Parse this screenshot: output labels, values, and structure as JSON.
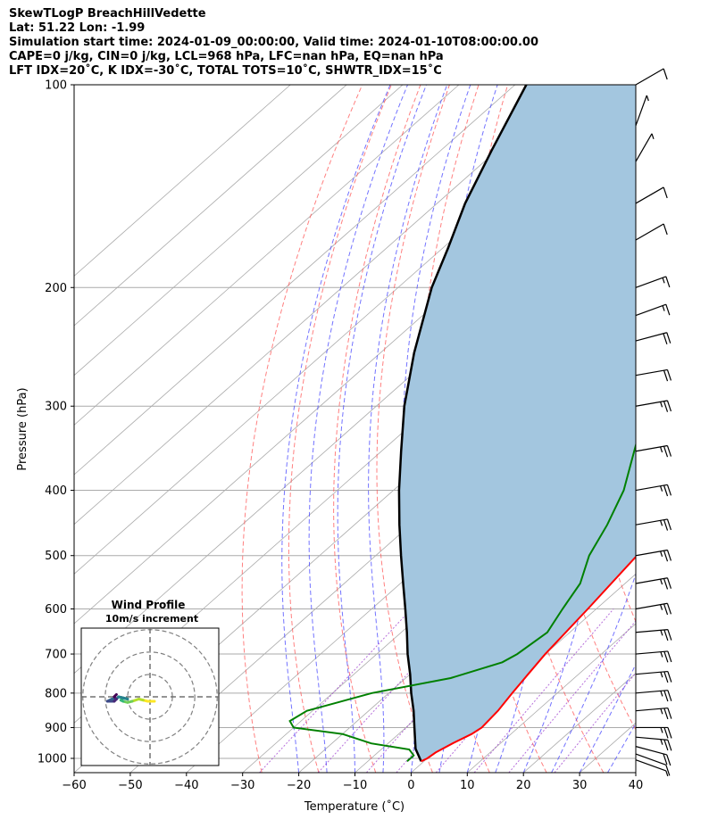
{
  "header": {
    "line1": "SkewTLogP BreachHillVedette",
    "line2": "Lat: 51.22   Lon: -1.99",
    "line3": "Simulation start time: 2024-01-09_00:00:00, Valid time: 2024-01-10T08:00:00.00",
    "line4": "CAPE=0 j/kg, CIN=0 j/kg, LCL=968 hPa, LFC=nan hPa, EQ=nan hPa",
    "line5": "LFT IDX=20˚C, K IDX=-30˚C, TOTAL TOTS=10˚C, SHWTR_IDX=15˚C"
  },
  "chart_data": {
    "type": "skewt-logp",
    "xlabel": "Temperature (˚C)",
    "ylabel": "Pressure (hPa)",
    "xlim": [
      -60,
      40
    ],
    "ylim": [
      1050,
      100
    ],
    "x_ticks": [
      -60,
      -50,
      -40,
      -30,
      -20,
      -10,
      0,
      10,
      20,
      30,
      40
    ],
    "x_tick_labels": [
      "−60",
      "−50",
      "−40",
      "−30",
      "−20",
      "−10",
      "0",
      "10",
      "20",
      "30",
      "40"
    ],
    "y_ticks": [
      1000,
      900,
      800,
      700,
      600,
      500,
      400,
      300,
      200,
      100
    ],
    "y_tick_labels": [
      "1000",
      "900",
      "800",
      "700",
      "600",
      "500",
      "400",
      "300",
      "200",
      "100"
    ],
    "colors": {
      "temperature": "#ff0000",
      "dewpoint": "#008000",
      "parcel": "#000000",
      "cape_fill": "#a3c6df",
      "dry_adiabat": "#ff5555",
      "moist_adiabat": "#4444ff",
      "mixing_ratio": "#9933cc",
      "isotherm": "#aaaaaa"
    },
    "temperature": [
      {
        "p": 1010,
        "t": -0.5
      },
      {
        "p": 1000,
        "t": 0
      },
      {
        "p": 980,
        "t": 0.3
      },
      {
        "p": 950,
        "t": 1.5
      },
      {
        "p": 920,
        "t": 3
      },
      {
        "p": 900,
        "t": 3.5
      },
      {
        "p": 850,
        "t": 3
      },
      {
        "p": 800,
        "t": 2
      },
      {
        "p": 750,
        "t": 1
      },
      {
        "p": 700,
        "t": 0
      },
      {
        "p": 600,
        "t": -1.5
      },
      {
        "p": 500,
        "t": -3.5
      },
      {
        "p": 450,
        "t": -5.5
      },
      {
        "p": 400,
        "t": -8.5
      },
      {
        "p": 350,
        "t": -11
      },
      {
        "p": 300,
        "t": -13
      },
      {
        "p": 270,
        "t": -12.5
      },
      {
        "p": 250,
        "t": -9
      },
      {
        "p": 230,
        "t": -4.5
      },
      {
        "p": 200,
        "t": -4
      },
      {
        "p": 170,
        "t": -1
      },
      {
        "p": 150,
        "t": 3
      },
      {
        "p": 135,
        "t": 5.5
      },
      {
        "p": 120,
        "t": 7.5
      },
      {
        "p": 110,
        "t": 10
      },
      {
        "p": 100,
        "t": 10.5
      }
    ],
    "dewpoint": [
      {
        "p": 1010,
        "t": -3
      },
      {
        "p": 990,
        "t": -3
      },
      {
        "p": 970,
        "t": -5
      },
      {
        "p": 950,
        "t": -13
      },
      {
        "p": 920,
        "t": -20
      },
      {
        "p": 900,
        "t": -30
      },
      {
        "p": 880,
        "t": -32
      },
      {
        "p": 850,
        "t": -31
      },
      {
        "p": 800,
        "t": -23
      },
      {
        "p": 760,
        "t": -12
      },
      {
        "p": 720,
        "t": -6
      },
      {
        "p": 700,
        "t": -5
      },
      {
        "p": 650,
        "t": -4
      },
      {
        "p": 600,
        "t": -6
      },
      {
        "p": 550,
        "t": -8
      },
      {
        "p": 500,
        "t": -12
      },
      {
        "p": 450,
        "t": -15
      },
      {
        "p": 400,
        "t": -19
      },
      {
        "p": 350,
        "t": -25
      },
      {
        "p": 320,
        "t": -29
      },
      {
        "p": 300,
        "t": -30
      },
      {
        "p": 280,
        "t": -30
      },
      {
        "p": 260,
        "t": -29
      },
      {
        "p": 220,
        "t": -25
      },
      {
        "p": 200,
        "t": -22
      },
      {
        "p": 180,
        "t": -20
      },
      {
        "p": 165,
        "t": -18
      },
      {
        "p": 150,
        "t": -13
      },
      {
        "p": 130,
        "t": -7
      },
      {
        "p": 115,
        "t": -3
      },
      {
        "p": 100,
        "t": 0
      }
    ],
    "parcel": [
      {
        "p": 1010,
        "t": -0.5
      },
      {
        "p": 968,
        "t": -4
      },
      {
        "p": 900,
        "t": -8.5
      },
      {
        "p": 850,
        "t": -12
      },
      {
        "p": 800,
        "t": -16
      },
      {
        "p": 750,
        "t": -20
      },
      {
        "p": 700,
        "t": -24.5
      },
      {
        "p": 650,
        "t": -29
      },
      {
        "p": 600,
        "t": -34
      },
      {
        "p": 550,
        "t": -39.5
      },
      {
        "p": 500,
        "t": -45.5
      },
      {
        "p": 450,
        "t": -52
      },
      {
        "p": 400,
        "t": -59
      },
      {
        "p": 350,
        "t": -66.5
      },
      {
        "p": 300,
        "t": -75
      },
      {
        "p": 250,
        "t": -84
      },
      {
        "p": 200,
        "t": -94
      },
      {
        "p": 175,
        "t": -99
      },
      {
        "p": 150,
        "t": -105
      },
      {
        "p": 125,
        "t": -111
      },
      {
        "p": 100,
        "t": -118
      }
    ],
    "wind_barbs": [
      {
        "p": 1005,
        "speed_kt": 5,
        "dir": 250
      },
      {
        "p": 985,
        "speed_kt": 10,
        "dir": 250
      },
      {
        "p": 960,
        "speed_kt": 20,
        "dir": 255
      },
      {
        "p": 930,
        "speed_kt": 25,
        "dir": 265
      },
      {
        "p": 900,
        "speed_kt": 25,
        "dir": 270
      },
      {
        "p": 850,
        "speed_kt": 25,
        "dir": 275
      },
      {
        "p": 800,
        "speed_kt": 25,
        "dir": 275
      },
      {
        "p": 750,
        "speed_kt": 25,
        "dir": 275
      },
      {
        "p": 700,
        "speed_kt": 25,
        "dir": 275
      },
      {
        "p": 650,
        "speed_kt": 25,
        "dir": 275
      },
      {
        "p": 600,
        "speed_kt": 25,
        "dir": 280
      },
      {
        "p": 550,
        "speed_kt": 25,
        "dir": 280
      },
      {
        "p": 500,
        "speed_kt": 25,
        "dir": 280
      },
      {
        "p": 450,
        "speed_kt": 25,
        "dir": 280
      },
      {
        "p": 400,
        "speed_kt": 25,
        "dir": 280
      },
      {
        "p": 350,
        "speed_kt": 25,
        "dir": 280
      },
      {
        "p": 300,
        "speed_kt": 25,
        "dir": 280
      },
      {
        "p": 270,
        "speed_kt": 20,
        "dir": 280
      },
      {
        "p": 240,
        "speed_kt": 20,
        "dir": 285
      },
      {
        "p": 220,
        "speed_kt": 15,
        "dir": 290
      },
      {
        "p": 200,
        "speed_kt": 15,
        "dir": 290
      },
      {
        "p": 170,
        "speed_kt": 10,
        "dir": 300
      },
      {
        "p": 150,
        "speed_kt": 10,
        "dir": 300
      },
      {
        "p": 130,
        "speed_kt": 5,
        "dir": 330
      },
      {
        "p": 115,
        "speed_kt": 5,
        "dir": 340
      },
      {
        "p": 100,
        "speed_kt": 10,
        "dir": 300
      }
    ],
    "hodograph": {
      "title": "Wind Profile",
      "subtitle": "10m/s increment",
      "points": [
        {
          "u": 2,
          "v": -2
        },
        {
          "u": -1,
          "v": -2
        },
        {
          "u": -3,
          "v": -1.5
        },
        {
          "u": -5,
          "v": -1
        },
        {
          "u": -8,
          "v": -2
        },
        {
          "u": -10,
          "v": -2.5
        },
        {
          "u": -12,
          "v": -2
        },
        {
          "u": -13,
          "v": -1.5
        },
        {
          "u": -12,
          "v": -0.5
        },
        {
          "u": -10,
          "v": -1
        },
        {
          "u": -14,
          "v": 0
        },
        {
          "u": -15,
          "v": -1
        },
        {
          "u": -17,
          "v": -1
        },
        {
          "u": -19,
          "v": -2
        },
        {
          "u": -18,
          "v": -2
        },
        {
          "u": -16,
          "v": -2
        },
        {
          "u": -15,
          "v": -1
        },
        {
          "u": -16,
          "v": 0
        },
        {
          "u": -15,
          "v": 1
        }
      ]
    }
  }
}
